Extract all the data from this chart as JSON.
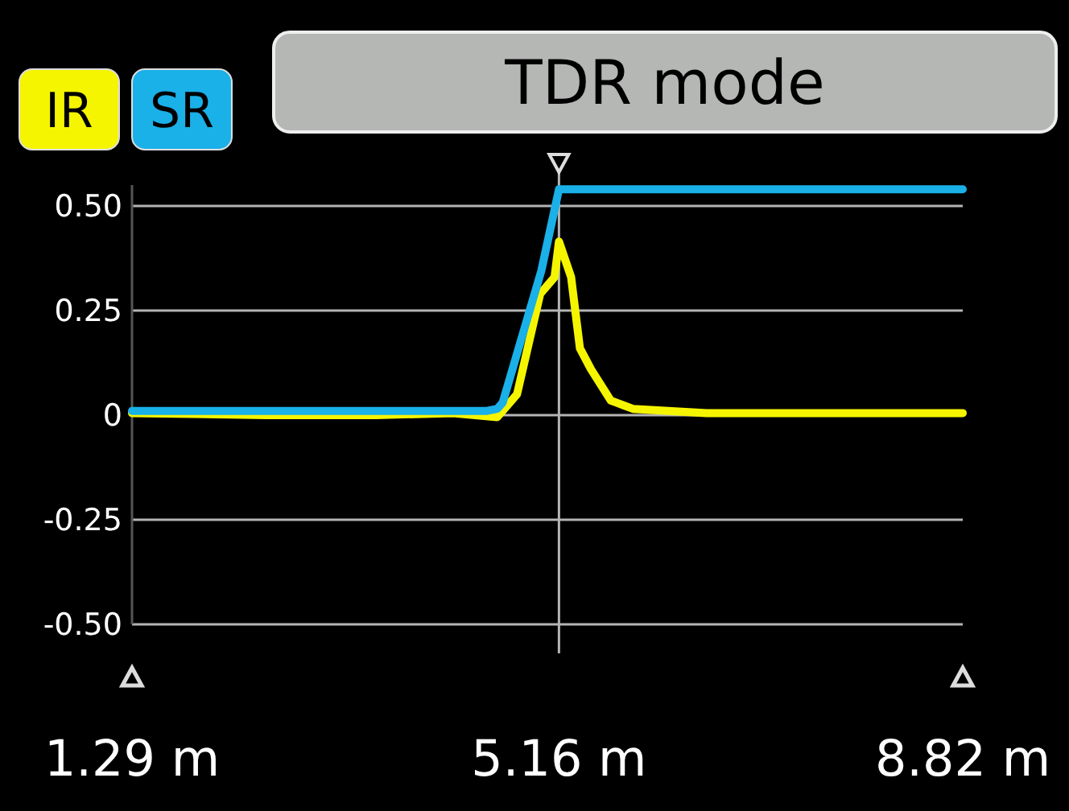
{
  "chart_data": {
    "type": "line",
    "title": "TDR mode",
    "legend": "top left",
    "grid": "y",
    "line_style": "solid",
    "marker": "none",
    "xlim": [
      1.29,
      8.82
    ],
    "ylim": [
      -0.5,
      0.55
    ],
    "xticks": [
      {
        "value": 1.29,
        "label": "1.29 m"
      },
      {
        "value": 5.16,
        "label": "5.16 m"
      },
      {
        "value": 8.82,
        "label": "8.82 m"
      }
    ],
    "yticks": [
      {
        "value": -0.5,
        "label": "-0.50"
      },
      {
        "value": -0.25,
        "label": "-0.25"
      },
      0,
      {
        "value": 0.25,
        "label": "0.25"
      },
      {
        "value": 0.5,
        "label": "0.50"
      }
    ],
    "ref_lines": [
      {
        "axis": "x",
        "value": 5.16,
        "color": "#b4b4b4"
      }
    ],
    "series": [
      {
        "name": "IR",
        "color": "#f5f500",
        "x": [
          1.29,
          2.5,
          3.5,
          4.2,
          4.6,
          4.78,
          4.99,
          5.12,
          5.16,
          5.27,
          5.35,
          5.45,
          5.63,
          5.83,
          6.5,
          7.5,
          8.82
        ],
        "values": [
          0.005,
          0.0,
          0.0,
          0.005,
          -0.005,
          0.05,
          0.29,
          0.33,
          0.415,
          0.33,
          0.16,
          0.11,
          0.035,
          0.015,
          0.005,
          0.005,
          0.005
        ]
      },
      {
        "name": "SR",
        "color": "#1ab0e8",
        "x": [
          1.29,
          2.5,
          3.5,
          4.5,
          4.6,
          4.65,
          5.0,
          5.16,
          6.0,
          7.0,
          8.0,
          8.82
        ],
        "values": [
          0.01,
          0.01,
          0.01,
          0.01,
          0.015,
          0.03,
          0.345,
          0.54,
          0.54,
          0.54,
          0.54,
          0.54
        ]
      }
    ]
  }
}
